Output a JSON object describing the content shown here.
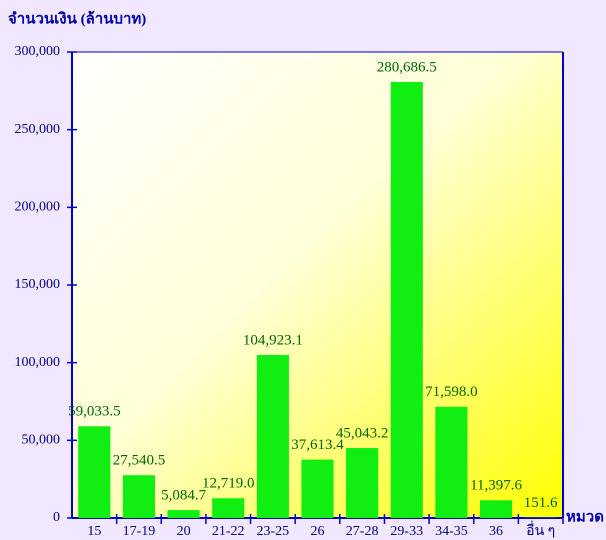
{
  "chart_data": {
    "type": "bar",
    "y_label": "จำนวนเงิน (ล้านบาท)",
    "x_label": "หมวด",
    "categories": [
      "15",
      "17-19",
      "20",
      "21-22",
      "23-25",
      "26",
      "27-28",
      "29-33",
      "34-35",
      "36",
      "อื่น ๆ"
    ],
    "values": [
      59033.5,
      27540.5,
      5084.7,
      12719.0,
      104923.1,
      37613.4,
      45043.2,
      280686.5,
      71598.0,
      11397.6,
      151.6
    ],
    "value_labels": [
      "59,033.5",
      "27,540.5",
      "5,084.7",
      "12,719.0",
      "104,923.1",
      "37,613.4",
      "45,043.2",
      "280,686.5",
      "71,598.0",
      "11,397.6",
      "151.6"
    ],
    "color": "#11ee11",
    "ylim": [
      0,
      300000
    ],
    "yticks": [
      0,
      {
        "value": 50000,
        "label": "50,000"
      },
      {
        "value": 100000,
        "label": "100,000"
      },
      {
        "value": 150000,
        "label": "150,000"
      },
      {
        "value": 200000,
        "label": "200,000"
      },
      {
        "value": 250000,
        "label": "250,000"
      },
      {
        "value": 300000,
        "label": "300,000"
      }
    ]
  }
}
